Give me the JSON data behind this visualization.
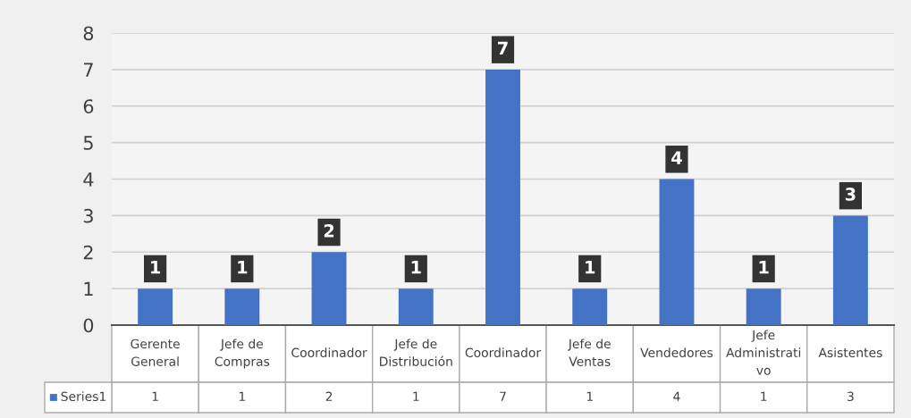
{
  "chart_data": {
    "type": "bar",
    "categories": [
      "Gerente General",
      "Jefe de Compras",
      "Coordinador",
      "Jefe de Distribución",
      "Coordinador",
      "Jefe de Ventas",
      "Vendedores",
      "Jefe Administrativo",
      "Asistentes"
    ],
    "series": [
      {
        "name": "Series1",
        "color": "#4472c4",
        "values": [
          1,
          1,
          2,
          1,
          7,
          1,
          4,
          1,
          3
        ],
        "value_labels": [
          "1",
          "1",
          "2",
          "1",
          "7",
          "1",
          "4",
          "1",
          "3"
        ]
      }
    ],
    "annotations": [
      "1",
      "1",
      "2",
      "1",
      "7",
      "1",
      "4",
      "1",
      "3"
    ],
    "ylim": [
      0,
      8
    ],
    "yticks": [
      0,
      1,
      2,
      3,
      4,
      5,
      6,
      7,
      8
    ],
    "grid": "y",
    "data_labels": true,
    "legend": "bottom"
  }
}
